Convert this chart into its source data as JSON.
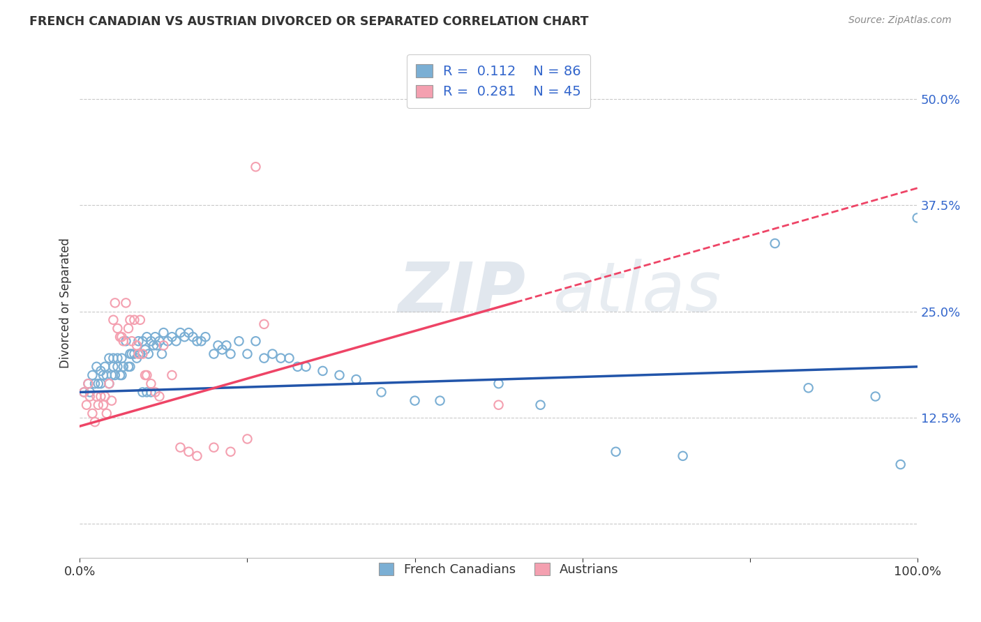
{
  "title": "FRENCH CANADIAN VS AUSTRIAN DIVORCED OR SEPARATED CORRELATION CHART",
  "source": "Source: ZipAtlas.com",
  "ylabel": "Divorced or Separated",
  "xlabel": "",
  "watermark": "ZIPatlas",
  "xlim": [
    0,
    1.0
  ],
  "ylim": [
    -0.04,
    0.56
  ],
  "xticks": [
    0.0,
    0.2,
    0.4,
    0.6,
    0.8,
    1.0
  ],
  "xticklabels": [
    "0.0%",
    "",
    "",
    "",
    "",
    "100.0%"
  ],
  "yticks": [
    0.0,
    0.125,
    0.25,
    0.375,
    0.5
  ],
  "yticklabels": [
    "",
    "12.5%",
    "25.0%",
    "37.5%",
    "50.0%"
  ],
  "blue_color": "#7BAFD4",
  "pink_color": "#F4A0B0",
  "blue_line_color": "#2255AA",
  "pink_line_color": "#EE4466",
  "legend_R_blue": "R =  0.112",
  "legend_N_blue": "N = 86",
  "legend_R_pink": "R =  0.281",
  "legend_N_pink": "N = 45",
  "legend_label_blue": "French Canadians",
  "legend_label_pink": "Austrians",
  "blue_intercept": 0.155,
  "blue_slope": 0.03,
  "pink_intercept": 0.115,
  "pink_slope": 0.28,
  "pink_line_data_end": 0.52,
  "blue_points_x": [
    0.005,
    0.01,
    0.012,
    0.015,
    0.018,
    0.02,
    0.022,
    0.025,
    0.025,
    0.028,
    0.03,
    0.032,
    0.035,
    0.035,
    0.038,
    0.04,
    0.04,
    0.042,
    0.045,
    0.045,
    0.048,
    0.05,
    0.05,
    0.052,
    0.055,
    0.058,
    0.06,
    0.06,
    0.062,
    0.065,
    0.068,
    0.07,
    0.072,
    0.075,
    0.078,
    0.08,
    0.082,
    0.085,
    0.088,
    0.09,
    0.092,
    0.095,
    0.098,
    0.1,
    0.105,
    0.11,
    0.115,
    0.12,
    0.125,
    0.13,
    0.135,
    0.14,
    0.145,
    0.15,
    0.16,
    0.165,
    0.17,
    0.175,
    0.18,
    0.19,
    0.2,
    0.21,
    0.22,
    0.23,
    0.24,
    0.25,
    0.26,
    0.27,
    0.29,
    0.31,
    0.33,
    0.36,
    0.4,
    0.43,
    0.5,
    0.55,
    0.64,
    0.72,
    0.83,
    0.87,
    0.95,
    0.98,
    1.0,
    0.075,
    0.08,
    0.085
  ],
  "blue_points_y": [
    0.155,
    0.165,
    0.155,
    0.175,
    0.165,
    0.185,
    0.165,
    0.18,
    0.165,
    0.175,
    0.185,
    0.175,
    0.195,
    0.165,
    0.175,
    0.195,
    0.185,
    0.175,
    0.195,
    0.185,
    0.175,
    0.195,
    0.175,
    0.185,
    0.215,
    0.185,
    0.2,
    0.185,
    0.2,
    0.2,
    0.195,
    0.215,
    0.2,
    0.215,
    0.205,
    0.22,
    0.2,
    0.215,
    0.21,
    0.22,
    0.21,
    0.215,
    0.2,
    0.225,
    0.215,
    0.22,
    0.215,
    0.225,
    0.22,
    0.225,
    0.22,
    0.215,
    0.215,
    0.22,
    0.2,
    0.21,
    0.205,
    0.21,
    0.2,
    0.215,
    0.2,
    0.215,
    0.195,
    0.2,
    0.195,
    0.195,
    0.185,
    0.185,
    0.18,
    0.175,
    0.17,
    0.155,
    0.145,
    0.145,
    0.165,
    0.14,
    0.085,
    0.08,
    0.33,
    0.16,
    0.15,
    0.07,
    0.36,
    0.155,
    0.155,
    0.155
  ],
  "pink_points_x": [
    0.005,
    0.008,
    0.01,
    0.012,
    0.015,
    0.018,
    0.02,
    0.022,
    0.025,
    0.028,
    0.03,
    0.032,
    0.035,
    0.038,
    0.04,
    0.042,
    0.045,
    0.048,
    0.05,
    0.052,
    0.055,
    0.058,
    0.06,
    0.062,
    0.065,
    0.068,
    0.07,
    0.072,
    0.075,
    0.078,
    0.08,
    0.085,
    0.09,
    0.095,
    0.1,
    0.11,
    0.12,
    0.13,
    0.14,
    0.16,
    0.18,
    0.2,
    0.21,
    0.5,
    0.22
  ],
  "pink_points_y": [
    0.155,
    0.14,
    0.165,
    0.15,
    0.13,
    0.12,
    0.15,
    0.14,
    0.15,
    0.14,
    0.15,
    0.13,
    0.165,
    0.145,
    0.24,
    0.26,
    0.23,
    0.22,
    0.22,
    0.215,
    0.26,
    0.23,
    0.24,
    0.215,
    0.24,
    0.21,
    0.2,
    0.24,
    0.2,
    0.175,
    0.175,
    0.165,
    0.155,
    0.15,
    0.21,
    0.175,
    0.09,
    0.085,
    0.08,
    0.09,
    0.085,
    0.1,
    0.42,
    0.14,
    0.235
  ]
}
